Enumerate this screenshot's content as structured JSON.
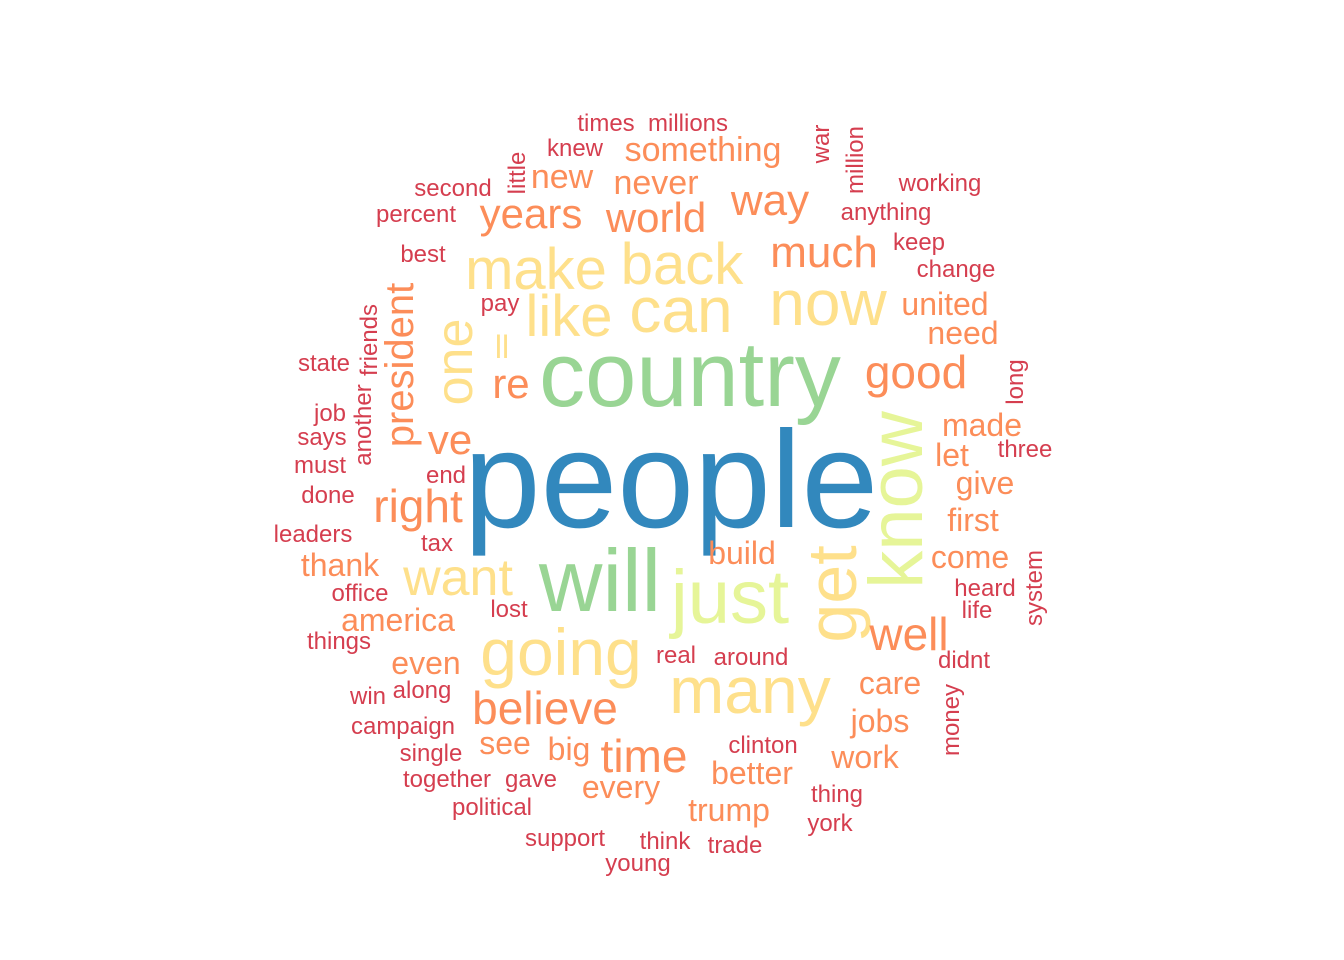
{
  "palette": {
    "blue": "#3288bd",
    "green": "#99d594",
    "lime": "#e6f598",
    "yellow": "#fee08b",
    "orange": "#fc8d59",
    "red": "#d53e4f"
  },
  "words": [
    {
      "text": "people",
      "color": "blue",
      "orientation": "horizontal"
    },
    {
      "text": "country",
      "color": "green",
      "orientation": "horizontal"
    },
    {
      "text": "will",
      "color": "green",
      "orientation": "horizontal"
    },
    {
      "text": "just",
      "color": "lime",
      "orientation": "horizontal"
    },
    {
      "text": "know",
      "color": "lime",
      "orientation": "vertical"
    },
    {
      "text": "get",
      "color": "yellow",
      "orientation": "vertical"
    },
    {
      "text": "many",
      "color": "yellow",
      "orientation": "horizontal"
    },
    {
      "text": "going",
      "color": "yellow",
      "orientation": "horizontal"
    },
    {
      "text": "now",
      "color": "yellow",
      "orientation": "horizontal"
    },
    {
      "text": "can",
      "color": "yellow",
      "orientation": "horizontal"
    },
    {
      "text": "make",
      "color": "yellow",
      "orientation": "horizontal"
    },
    {
      "text": "back",
      "color": "yellow",
      "orientation": "horizontal"
    },
    {
      "text": "like",
      "color": "yellow",
      "orientation": "horizontal"
    },
    {
      "text": "one",
      "color": "yellow",
      "orientation": "vertical"
    },
    {
      "text": "want",
      "color": "yellow",
      "orientation": "horizontal"
    },
    {
      "text": "time",
      "color": "orange",
      "orientation": "horizontal"
    },
    {
      "text": "believe",
      "color": "orange",
      "orientation": "horizontal"
    },
    {
      "text": "good",
      "color": "orange",
      "orientation": "horizontal"
    },
    {
      "text": "well",
      "color": "orange",
      "orientation": "horizontal"
    },
    {
      "text": "right",
      "color": "orange",
      "orientation": "horizontal"
    },
    {
      "text": "much",
      "color": "orange",
      "orientation": "horizontal"
    },
    {
      "text": "way",
      "color": "orange",
      "orientation": "horizontal"
    },
    {
      "text": "years",
      "color": "orange",
      "orientation": "horizontal"
    },
    {
      "text": "world",
      "color": "orange",
      "orientation": "horizontal"
    },
    {
      "text": "president",
      "color": "orange",
      "orientation": "vertical"
    },
    {
      "text": "ve",
      "color": "orange",
      "orientation": "horizontal"
    },
    {
      "text": "re",
      "color": "orange",
      "orientation": "horizontal"
    },
    {
      "text": "ll",
      "color": "yellow",
      "orientation": "horizontal"
    },
    {
      "text": "something",
      "color": "orange",
      "orientation": "horizontal"
    },
    {
      "text": "never",
      "color": "orange",
      "orientation": "horizontal"
    },
    {
      "text": "new",
      "color": "orange",
      "orientation": "horizontal"
    },
    {
      "text": "united",
      "color": "orange",
      "orientation": "horizontal"
    },
    {
      "text": "need",
      "color": "orange",
      "orientation": "horizontal"
    },
    {
      "text": "made",
      "color": "orange",
      "orientation": "horizontal"
    },
    {
      "text": "let",
      "color": "orange",
      "orientation": "horizontal"
    },
    {
      "text": "give",
      "color": "orange",
      "orientation": "horizontal"
    },
    {
      "text": "first",
      "color": "orange",
      "orientation": "horizontal"
    },
    {
      "text": "come",
      "color": "orange",
      "orientation": "horizontal"
    },
    {
      "text": "build",
      "color": "orange",
      "orientation": "horizontal"
    },
    {
      "text": "thank",
      "color": "orange",
      "orientation": "horizontal"
    },
    {
      "text": "america",
      "color": "orange",
      "orientation": "horizontal"
    },
    {
      "text": "even",
      "color": "orange",
      "orientation": "horizontal"
    },
    {
      "text": "see",
      "color": "orange",
      "orientation": "horizontal"
    },
    {
      "text": "big",
      "color": "orange",
      "orientation": "horizontal"
    },
    {
      "text": "every",
      "color": "orange",
      "orientation": "horizontal"
    },
    {
      "text": "trump",
      "color": "orange",
      "orientation": "horizontal"
    },
    {
      "text": "better",
      "color": "orange",
      "orientation": "horizontal"
    },
    {
      "text": "work",
      "color": "orange",
      "orientation": "horizontal"
    },
    {
      "text": "jobs",
      "color": "orange",
      "orientation": "horizontal"
    },
    {
      "text": "care",
      "color": "orange",
      "orientation": "horizontal"
    },
    {
      "text": "times",
      "color": "red",
      "orientation": "horizontal"
    },
    {
      "text": "millions",
      "color": "red",
      "orientation": "horizontal"
    },
    {
      "text": "knew",
      "color": "red",
      "orientation": "horizontal"
    },
    {
      "text": "little",
      "color": "red",
      "orientation": "vertical"
    },
    {
      "text": "second",
      "color": "red",
      "orientation": "horizontal"
    },
    {
      "text": "percent",
      "color": "red",
      "orientation": "horizontal"
    },
    {
      "text": "war",
      "color": "red",
      "orientation": "vertical"
    },
    {
      "text": "million",
      "color": "red",
      "orientation": "vertical"
    },
    {
      "text": "working",
      "color": "red",
      "orientation": "horizontal"
    },
    {
      "text": "anything",
      "color": "red",
      "orientation": "horizontal"
    },
    {
      "text": "keep",
      "color": "red",
      "orientation": "horizontal"
    },
    {
      "text": "change",
      "color": "red",
      "orientation": "horizontal"
    },
    {
      "text": "best",
      "color": "red",
      "orientation": "horizontal"
    },
    {
      "text": "pay",
      "color": "red",
      "orientation": "horizontal"
    },
    {
      "text": "friends",
      "color": "red",
      "orientation": "vertical"
    },
    {
      "text": "another",
      "color": "red",
      "orientation": "vertical"
    },
    {
      "text": "state",
      "color": "red",
      "orientation": "horizontal"
    },
    {
      "text": "job",
      "color": "red",
      "orientation": "horizontal"
    },
    {
      "text": "says",
      "color": "red",
      "orientation": "horizontal"
    },
    {
      "text": "must",
      "color": "red",
      "orientation": "horizontal"
    },
    {
      "text": "done",
      "color": "red",
      "orientation": "horizontal"
    },
    {
      "text": "end",
      "color": "red",
      "orientation": "horizontal"
    },
    {
      "text": "leaders",
      "color": "red",
      "orientation": "horizontal"
    },
    {
      "text": "tax",
      "color": "red",
      "orientation": "horizontal"
    },
    {
      "text": "office",
      "color": "red",
      "orientation": "horizontal"
    },
    {
      "text": "things",
      "color": "red",
      "orientation": "horizontal"
    },
    {
      "text": "lost",
      "color": "red",
      "orientation": "horizontal"
    },
    {
      "text": "long",
      "color": "red",
      "orientation": "vertical"
    },
    {
      "text": "three",
      "color": "red",
      "orientation": "horizontal"
    },
    {
      "text": "heard",
      "color": "red",
      "orientation": "horizontal"
    },
    {
      "text": "life",
      "color": "red",
      "orientation": "horizontal"
    },
    {
      "text": "system",
      "color": "red",
      "orientation": "vertical"
    },
    {
      "text": "didnt",
      "color": "red",
      "orientation": "horizontal"
    },
    {
      "text": "money",
      "color": "red",
      "orientation": "vertical"
    },
    {
      "text": "real",
      "color": "red",
      "orientation": "horizontal"
    },
    {
      "text": "around",
      "color": "red",
      "orientation": "horizontal"
    },
    {
      "text": "win",
      "color": "red",
      "orientation": "horizontal"
    },
    {
      "text": "along",
      "color": "red",
      "orientation": "horizontal"
    },
    {
      "text": "campaign",
      "color": "red",
      "orientation": "horizontal"
    },
    {
      "text": "single",
      "color": "red",
      "orientation": "horizontal"
    },
    {
      "text": "together",
      "color": "red",
      "orientation": "horizontal"
    },
    {
      "text": "gave",
      "color": "red",
      "orientation": "horizontal"
    },
    {
      "text": "political",
      "color": "red",
      "orientation": "horizontal"
    },
    {
      "text": "clinton",
      "color": "red",
      "orientation": "horizontal"
    },
    {
      "text": "thing",
      "color": "red",
      "orientation": "horizontal"
    },
    {
      "text": "york",
      "color": "red",
      "orientation": "horizontal"
    },
    {
      "text": "support",
      "color": "red",
      "orientation": "horizontal"
    },
    {
      "text": "think",
      "color": "red",
      "orientation": "horizontal"
    },
    {
      "text": "trade",
      "color": "red",
      "orientation": "horizontal"
    },
    {
      "text": "young",
      "color": "red",
      "orientation": "horizontal"
    }
  ]
}
